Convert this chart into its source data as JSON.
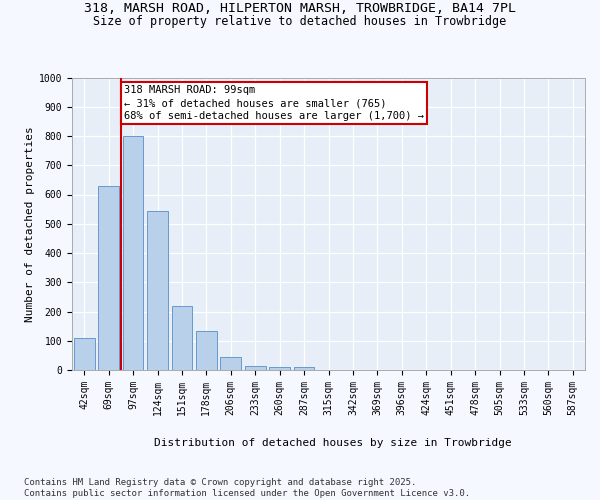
{
  "title_line1": "318, MARSH ROAD, HILPERTON MARSH, TROWBRIDGE, BA14 7PL",
  "title_line2": "Size of property relative to detached houses in Trowbridge",
  "xlabel": "Distribution of detached houses by size in Trowbridge",
  "ylabel": "Number of detached properties",
  "categories": [
    "42sqm",
    "69sqm",
    "97sqm",
    "124sqm",
    "151sqm",
    "178sqm",
    "206sqm",
    "233sqm",
    "260sqm",
    "287sqm",
    "315sqm",
    "342sqm",
    "369sqm",
    "396sqm",
    "424sqm",
    "451sqm",
    "478sqm",
    "505sqm",
    "533sqm",
    "560sqm",
    "587sqm"
  ],
  "values": [
    110,
    630,
    800,
    545,
    220,
    135,
    45,
    15,
    10,
    10,
    0,
    0,
    0,
    0,
    0,
    0,
    0,
    0,
    0,
    0,
    0
  ],
  "bar_color": "#b8d0ea",
  "bar_edge_color": "#6699cc",
  "vline_index": 2,
  "vline_color": "#cc0000",
  "annotation_line1": "318 MARSH ROAD: 99sqm",
  "annotation_line2": "← 31% of detached houses are smaller (765)",
  "annotation_line3": "68% of semi-detached houses are larger (1,700) →",
  "annotation_box_facecolor": "#ffffff",
  "annotation_box_edgecolor": "#cc0000",
  "ylim": [
    0,
    1000
  ],
  "yticks": [
    0,
    100,
    200,
    300,
    400,
    500,
    600,
    700,
    800,
    900,
    1000
  ],
  "plot_bg_color": "#e8eef8",
  "grid_color": "#ffffff",
  "fig_bg_color": "#f5f8ff",
  "footer": "Contains HM Land Registry data © Crown copyright and database right 2025.\nContains public sector information licensed under the Open Government Licence v3.0.",
  "title_fontsize": 9.5,
  "subtitle_fontsize": 8.5,
  "ylabel_fontsize": 8,
  "xlabel_fontsize": 8,
  "tick_fontsize": 7,
  "ann_fontsize": 7.5,
  "footer_fontsize": 6.5
}
